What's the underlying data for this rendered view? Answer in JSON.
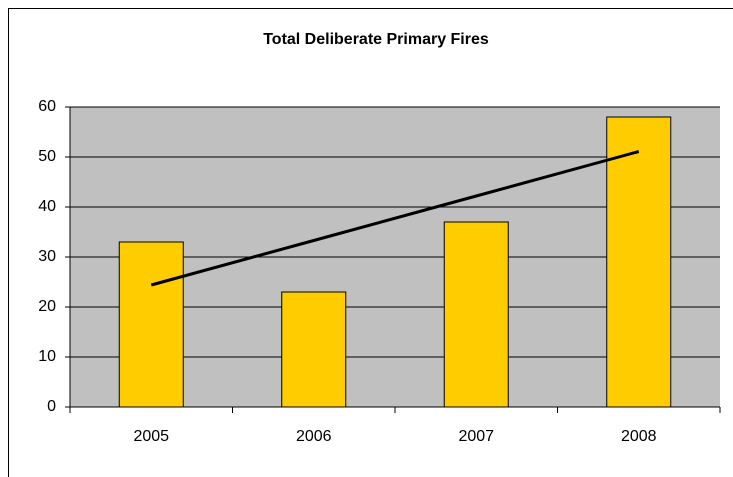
{
  "chart_data": {
    "type": "bar",
    "title": "Total Deliberate Primary Fires",
    "categories": [
      "2005",
      "2006",
      "2007",
      "2008"
    ],
    "values": [
      33,
      23,
      37,
      58
    ],
    "color": "#ffcc00",
    "trendline": {
      "color": "#000000",
      "values": [
        24.4,
        33.3,
        42.2,
        51.1
      ]
    },
    "ylim": [
      0,
      60
    ],
    "yticks": [
      0,
      10,
      20,
      30,
      40,
      50,
      60
    ],
    "grid": true,
    "plot_background": "#c0c0c0"
  }
}
